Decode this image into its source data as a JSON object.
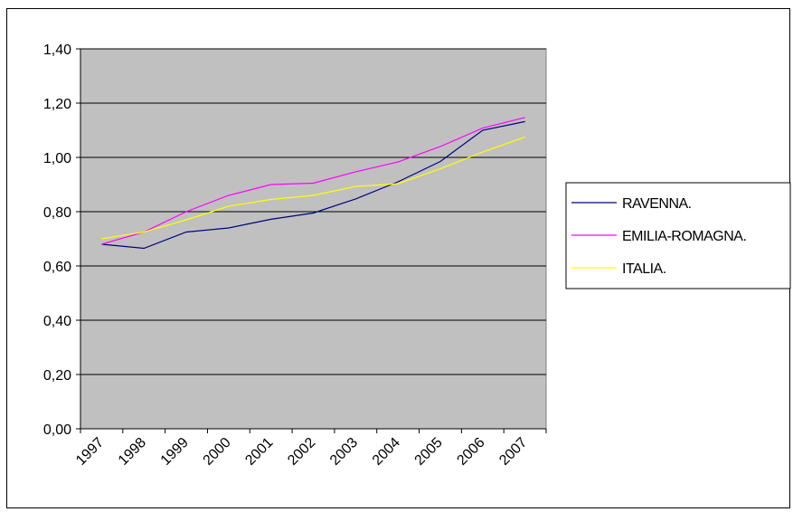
{
  "chart_data": {
    "type": "line",
    "title": "",
    "xlabel": "",
    "ylabel": "",
    "categories": [
      "1997",
      "1998",
      "1999",
      "2000",
      "2001",
      "2002",
      "2003",
      "2004",
      "2005",
      "2006",
      "2007"
    ],
    "y_ticks": [
      "0,00",
      "0,20",
      "0,40",
      "0,60",
      "0,80",
      "1,00",
      "1,20",
      "1,40"
    ],
    "ylim": [
      0,
      1.4
    ],
    "grid": true,
    "plot_background": "#c0c0c0",
    "legend_position": "right",
    "series": [
      {
        "name": "RAVENNA.",
        "color": "#000080",
        "values": [
          0.68,
          0.665,
          0.725,
          0.74,
          0.772,
          0.795,
          0.847,
          0.91,
          0.985,
          1.1,
          1.132
        ]
      },
      {
        "name": "EMILIA-ROMAGNA.",
        "color": "#ff00ff",
        "values": [
          0.68,
          0.725,
          0.8,
          0.86,
          0.9,
          0.905,
          0.947,
          0.983,
          1.04,
          1.108,
          1.147
        ]
      },
      {
        "name": "ITALIA.",
        "color": "#ffff00",
        "values": [
          0.7,
          0.725,
          0.77,
          0.82,
          0.845,
          0.86,
          0.893,
          0.903,
          0.958,
          1.02,
          1.075
        ]
      }
    ]
  }
}
